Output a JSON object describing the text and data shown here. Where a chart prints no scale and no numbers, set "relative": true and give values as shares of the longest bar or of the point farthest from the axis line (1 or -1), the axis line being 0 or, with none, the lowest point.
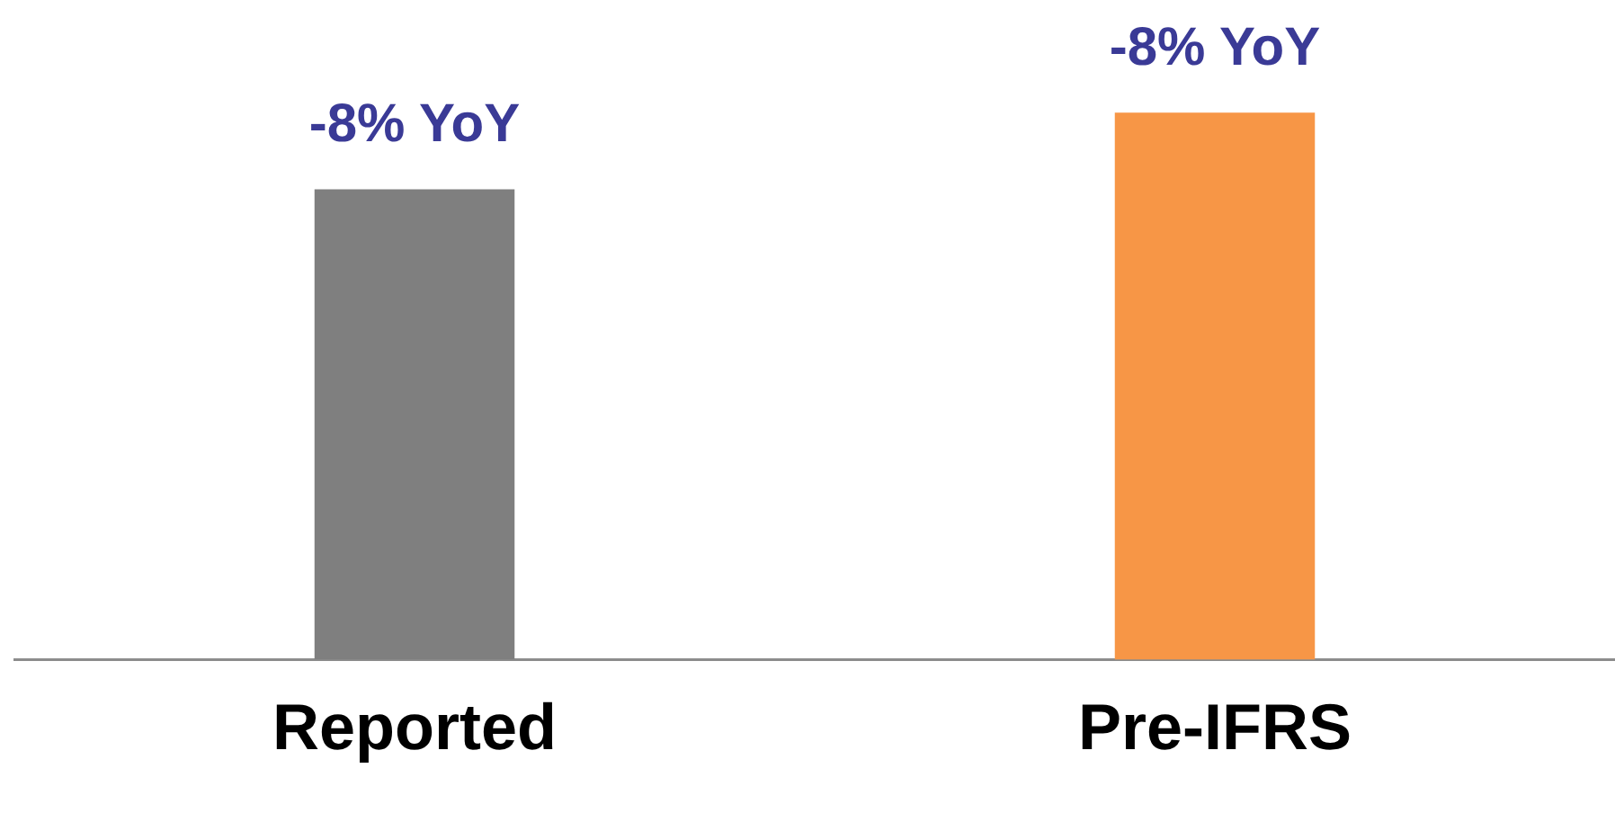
{
  "chart_data": {
    "type": "bar",
    "relative": true,
    "categories": [
      "Reported",
      "Pre-IFRS"
    ],
    "values": [
      0.86,
      1
    ],
    "colors": [
      "#7f7f7f",
      "#f79646"
    ],
    "annotations": [
      {
        "text": "-8% YoY",
        "x": "Reported",
        "y": 0.86
      },
      {
        "text": "-8% YoY",
        "x": "Pre-IFRS",
        "y": 1
      }
    ],
    "grid": false,
    "legend": false
  }
}
